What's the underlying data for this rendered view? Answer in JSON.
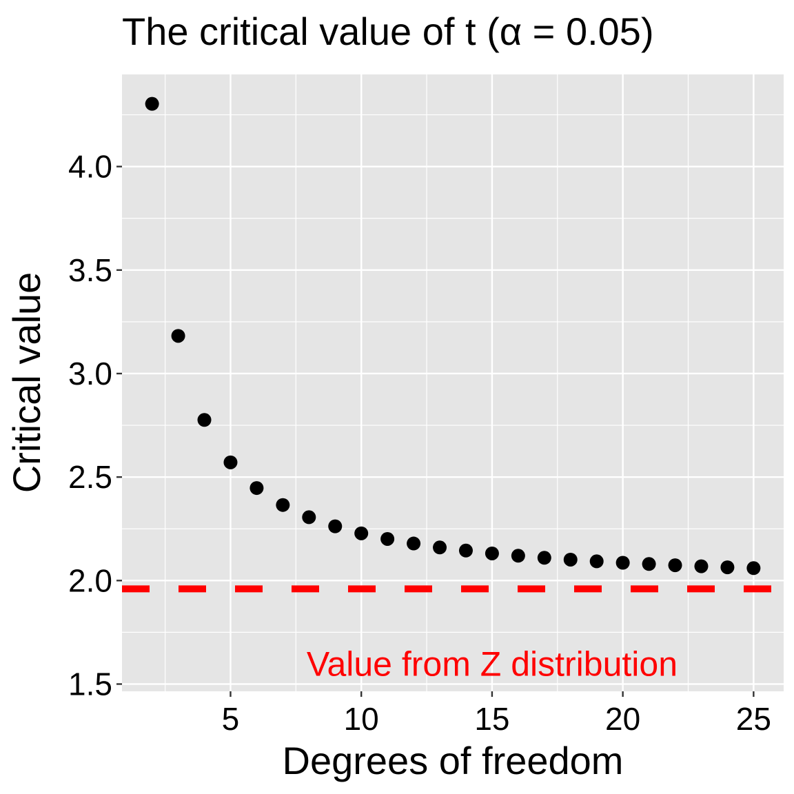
{
  "chart_data": {
    "type": "scatter",
    "title": "The critical value of t (α = 0.05)",
    "xlabel": "Degrees of freedom",
    "ylabel": "Critical value",
    "x": [
      2,
      3,
      4,
      5,
      6,
      7,
      8,
      9,
      10,
      11,
      12,
      13,
      14,
      15,
      16,
      17,
      18,
      19,
      20,
      21,
      22,
      23,
      24,
      25
    ],
    "y": [
      4.303,
      3.182,
      2.776,
      2.571,
      2.447,
      2.365,
      2.306,
      2.262,
      2.228,
      2.201,
      2.179,
      2.16,
      2.145,
      2.131,
      2.12,
      2.11,
      2.101,
      2.093,
      2.086,
      2.08,
      2.074,
      2.069,
      2.064,
      2.06
    ],
    "xlim": [
      0.85,
      26.15
    ],
    "ylim": [
      1.465,
      4.445
    ],
    "xticks": [
      5,
      10,
      15,
      20,
      25
    ],
    "xtick_labels": [
      "5",
      "10",
      "15",
      "20",
      "25"
    ],
    "yticks": [
      1.5,
      2.0,
      2.5,
      3.0,
      3.5,
      4.0
    ],
    "ytick_labels": [
      "1.5",
      "2.0",
      "2.5",
      "3.0",
      "3.5",
      "4.0"
    ],
    "grid": true,
    "reference_line": {
      "y": 1.96,
      "style": "dashed",
      "color": "#ff0000"
    },
    "annotation": {
      "text": "Value from Z distribution",
      "x": 15,
      "y": 1.6,
      "color": "#ff0000"
    },
    "point_color": "#000000",
    "panel_color": "#e5e5e5"
  }
}
